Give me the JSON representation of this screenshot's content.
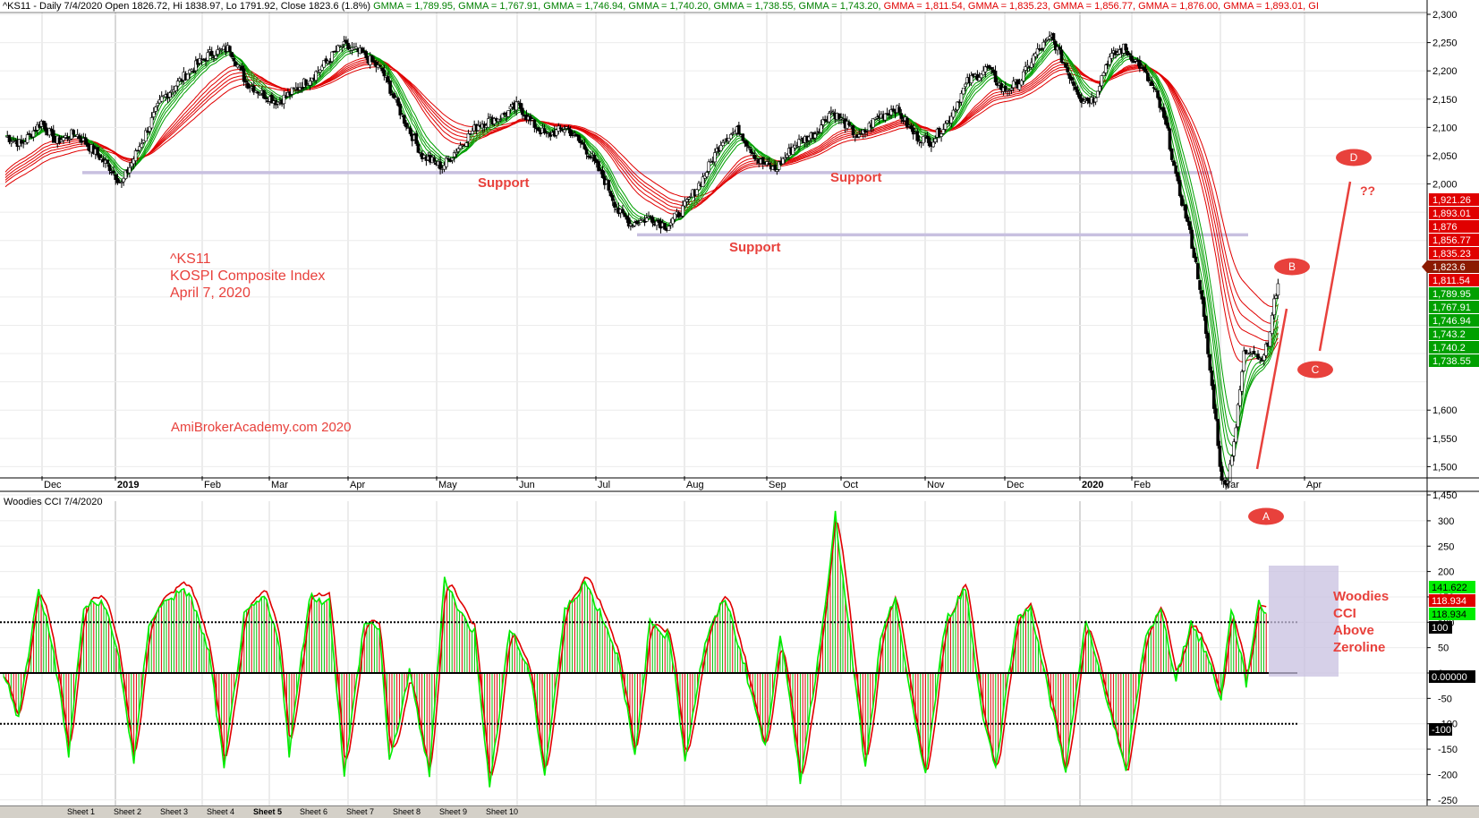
{
  "header": {
    "title_segments": [
      {
        "text": "^KS11 - Daily 7/4/2020 Open 1826.72, Hi 1838.97, Lo 1791.92, Close 1823.6 (1.8%) ",
        "color": "#000000"
      },
      {
        "text": "GMMA = 1,789.95, ",
        "color": "#008000"
      },
      {
        "text": "GMMA = 1,767.91, ",
        "color": "#008000"
      },
      {
        "text": "GMMA = 1,746.94, ",
        "color": "#008000"
      },
      {
        "text": "GMMA = 1,740.20, ",
        "color": "#008000"
      },
      {
        "text": "GMMA = 1,738.55, ",
        "color": "#008000"
      },
      {
        "text": "GMMA = 1,743.20, ",
        "color": "#008000"
      },
      {
        "text": "GMMA = 1,811.54, ",
        "color": "#e00000"
      },
      {
        "text": "GMMA = 1,835.23, ",
        "color": "#e00000"
      },
      {
        "text": "GMMA = 1,856.77, ",
        "color": "#e00000"
      },
      {
        "text": "GMMA = 1,876.00, ",
        "color": "#e00000"
      },
      {
        "text": "GMMA = 1,893.01, ",
        "color": "#e00000"
      },
      {
        "text": "GI",
        "color": "#e00000"
      }
    ]
  },
  "annotations": {
    "ticker": "^KS11",
    "name": "KOSPI Composite Index",
    "date": "April 7, 2020",
    "website": "AmiBrokerAcademy.com   2020",
    "support_1": "Support",
    "support_2": "Support",
    "support_3": "Support",
    "question": "??",
    "woodies_1": "Woodies",
    "woodies_2": "CCI",
    "woodies_3": "Above",
    "woodies_4": "Zeroline"
  },
  "markers": [
    "A",
    "B",
    "C",
    "D"
  ],
  "colors": {
    "short_gmma": "#00a000",
    "long_gmma": "#e00000",
    "cci_line": "#00ee00",
    "turbo_line": "#e00000",
    "support_line": "#c8c0e0",
    "annotation": "#e8413c",
    "highlight_box": "#c8c0e0"
  },
  "tabs": [
    "Sheet 1",
    "Sheet 2",
    "Sheet 3",
    "Sheet 4",
    "Sheet 5",
    "Sheet 6",
    "Sheet 7",
    "Sheet 8",
    "Sheet 9",
    "Sheet 10"
  ],
  "chart_data": [
    {
      "type": "candlestick",
      "title": "^KS11 - Daily 7/4/2020",
      "x_months": [
        "Dec",
        "2019",
        "Feb",
        "Mar",
        "Apr",
        "May",
        "Jun",
        "Jul",
        "Aug",
        "Sep",
        "Oct",
        "Nov",
        "Dec",
        "2020",
        "Feb",
        "Mar",
        "Apr"
      ],
      "y_ticks": [
        1450,
        1500,
        1550,
        1600,
        1650,
        1700,
        1750,
        1800,
        1850,
        1900,
        1950,
        2000,
        2050,
        2100,
        2150,
        2200,
        2250,
        2300
      ],
      "y_tick_labels": [
        "1,450",
        "1,500",
        "1,550",
        "1,600",
        "",
        "",
        "",
        "",
        "",
        "",
        "",
        "2,000",
        "2,050",
        "2,100",
        "2,150",
        "2,200",
        "2,250",
        "2,300"
      ],
      "ylim": [
        1420,
        2330
      ],
      "close_path": [
        [
          0,
          2085
        ],
        [
          8,
          2070
        ],
        [
          18,
          2110
        ],
        [
          25,
          2075
        ],
        [
          35,
          2090
        ],
        [
          45,
          2055
        ],
        [
          52,
          2030
        ],
        [
          58,
          2000
        ],
        [
          66,
          2060
        ],
        [
          78,
          2150
        ],
        [
          92,
          2200
        ],
        [
          102,
          2230
        ],
        [
          112,
          2240
        ],
        [
          120,
          2180
        ],
        [
          128,
          2160
        ],
        [
          136,
          2145
        ],
        [
          146,
          2170
        ],
        [
          156,
          2200
        ],
        [
          168,
          2245
        ],
        [
          178,
          2230
        ],
        [
          188,
          2200
        ],
        [
          198,
          2120
        ],
        [
          208,
          2050
        ],
        [
          218,
          2030
        ],
        [
          225,
          2060
        ],
        [
          236,
          2105
        ],
        [
          248,
          2120
        ],
        [
          256,
          2140
        ],
        [
          262,
          2110
        ],
        [
          270,
          2085
        ],
        [
          280,
          2100
        ],
        [
          290,
          2060
        ],
        [
          300,
          2000
        ],
        [
          306,
          1950
        ],
        [
          312,
          1930
        ],
        [
          322,
          1940
        ],
        [
          330,
          1925
        ],
        [
          338,
          1955
        ],
        [
          348,
          2010
        ],
        [
          358,
          2080
        ],
        [
          366,
          2095
        ],
        [
          376,
          2040
        ],
        [
          384,
          2025
        ],
        [
          394,
          2070
        ],
        [
          404,
          2090
        ],
        [
          412,
          2130
        ],
        [
          418,
          2110
        ],
        [
          426,
          2080
        ],
        [
          434,
          2115
        ],
        [
          444,
          2135
        ],
        [
          454,
          2085
        ],
        [
          462,
          2075
        ],
        [
          470,
          2110
        ],
        [
          480,
          2180
        ],
        [
          490,
          2205
        ],
        [
          498,
          2165
        ],
        [
          506,
          2180
        ],
        [
          514,
          2230
        ],
        [
          522,
          2260
        ],
        [
          530,
          2200
        ],
        [
          537,
          2150
        ],
        [
          543,
          2150
        ],
        [
          550,
          2220
        ],
        [
          558,
          2240
        ],
        [
          566,
          2210
        ],
        [
          574,
          2160
        ],
        [
          580,
          2090
        ],
        [
          584,
          2010
        ],
        [
          590,
          1930
        ],
        [
          596,
          1820
        ],
        [
          600,
          1700
        ],
        [
          604,
          1580
        ],
        [
          607,
          1470
        ],
        [
          610,
          1480
        ],
        [
          614,
          1570
        ],
        [
          618,
          1700
        ],
        [
          622,
          1710
        ],
        [
          626,
          1690
        ],
        [
          630,
          1715
        ],
        [
          633,
          1790
        ],
        [
          635,
          1823.6
        ]
      ],
      "close_last": 1823.6,
      "gmma_last": [
        1789.95,
        1767.91,
        1746.94,
        1740.2,
        1738.55,
        1743.2,
        1811.54,
        1835.23,
        1856.77,
        1876.0,
        1893.01
      ],
      "price_labels": [
        {
          "text": "1,921.26",
          "bg": "#e00000",
          "fg": "#ffffff"
        },
        {
          "text": "1,893.01",
          "bg": "#e00000",
          "fg": "#ffffff"
        },
        {
          "text": "1,876",
          "bg": "#e00000",
          "fg": "#ffffff"
        },
        {
          "text": "1,856.77",
          "bg": "#e00000",
          "fg": "#ffffff"
        },
        {
          "text": "1,835.23",
          "bg": "#e00000",
          "fg": "#ffffff"
        },
        {
          "text": "1,823.6",
          "bg": "#8b1a00",
          "fg": "#ffffff"
        },
        {
          "text": "1,811.54",
          "bg": "#e00000",
          "fg": "#ffffff"
        },
        {
          "text": "1,789.95",
          "bg": "#00a000",
          "fg": "#ffffff"
        },
        {
          "text": "1,767.91",
          "bg": "#00a000",
          "fg": "#ffffff"
        },
        {
          "text": "1,746.94",
          "bg": "#00a000",
          "fg": "#ffffff"
        },
        {
          "text": "1,743.2",
          "bg": "#00a000",
          "fg": "#ffffff"
        },
        {
          "text": "1,740.2",
          "bg": "#00a000",
          "fg": "#ffffff"
        },
        {
          "text": "1,738.55",
          "bg": "#00a000",
          "fg": "#ffffff"
        }
      ],
      "support_levels": [
        2020,
        1910
      ]
    },
    {
      "type": "line",
      "title": "Woodies CCI  7/4/2020",
      "y_ticks": [
        -250,
        -200,
        -150,
        -100,
        -50,
        0,
        50,
        100,
        150,
        200,
        250,
        300
      ],
      "ylim": [
        -270,
        330
      ],
      "levels": [
        -100,
        0,
        100
      ],
      "cci_path": [
        [
          0,
          0
        ],
        [
          6,
          -90
        ],
        [
          14,
          170
        ],
        [
          20,
          40
        ],
        [
          26,
          -160
        ],
        [
          32,
          130
        ],
        [
          40,
          140
        ],
        [
          46,
          30
        ],
        [
          52,
          -180
        ],
        [
          58,
          100
        ],
        [
          66,
          150
        ],
        [
          74,
          160
        ],
        [
          82,
          40
        ],
        [
          88,
          -190
        ],
        [
          96,
          110
        ],
        [
          104,
          150
        ],
        [
          110,
          60
        ],
        [
          114,
          -160
        ],
        [
          122,
          150
        ],
        [
          130,
          140
        ],
        [
          136,
          -200
        ],
        [
          144,
          100
        ],
        [
          150,
          90
        ],
        [
          154,
          -180
        ],
        [
          162,
          0
        ],
        [
          170,
          -200
        ],
        [
          176,
          190
        ],
        [
          182,
          120
        ],
        [
          188,
          80
        ],
        [
          194,
          -230
        ],
        [
          202,
          90
        ],
        [
          210,
          0
        ],
        [
          216,
          -200
        ],
        [
          224,
          120
        ],
        [
          232,
          180
        ],
        [
          240,
          100
        ],
        [
          246,
          20
        ],
        [
          252,
          -170
        ],
        [
          258,
          100
        ],
        [
          266,
          70
        ],
        [
          272,
          -170
        ],
        [
          280,
          60
        ],
        [
          288,
          150
        ],
        [
          296,
          10
        ],
        [
          304,
          -150
        ],
        [
          310,
          80
        ],
        [
          318,
          -210
        ],
        [
          326,
          60
        ],
        [
          332,
          310
        ],
        [
          338,
          60
        ],
        [
          344,
          -190
        ],
        [
          350,
          60
        ],
        [
          356,
          150
        ],
        [
          362,
          -50
        ],
        [
          368,
          -200
        ],
        [
          376,
          100
        ],
        [
          384,
          170
        ],
        [
          390,
          -60
        ],
        [
          396,
          -190
        ],
        [
          404,
          100
        ],
        [
          410,
          130
        ],
        [
          418,
          -60
        ],
        [
          424,
          -190
        ],
        [
          432,
          100
        ],
        [
          440,
          -40
        ],
        [
          448,
          -200
        ],
        [
          456,
          80
        ],
        [
          462,
          120
        ],
        [
          468,
          -10
        ],
        [
          474,
          100
        ],
        [
          480,
          40
        ],
        [
          486,
          -50
        ],
        [
          490,
          130
        ],
        [
          496,
          -20
        ],
        [
          501,
          140
        ],
        [
          504,
          120
        ]
      ],
      "cci_last": 141.622,
      "turbo_last": 118.934,
      "value_labels": [
        {
          "text": "141.622",
          "bg": "#00ee00",
          "fg": "#000000"
        },
        {
          "text": "118.934",
          "bg": "#e00000",
          "fg": "#ffffff"
        },
        {
          "text": "118.934",
          "bg": "#00ee00",
          "fg": "#000000"
        },
        {
          "text": "100",
          "bg": "#000000",
          "fg": "#ffffff"
        },
        {
          "text": "0.00000",
          "bg": "#000000",
          "fg": "#ffffff"
        },
        {
          "text": "-100",
          "bg": "#000000",
          "fg": "#ffffff"
        }
      ],
      "y_tick_labels": [
        "-250",
        "-200",
        "-150",
        "-100",
        "-50",
        "0",
        "50",
        "100",
        "150",
        "200",
        "250",
        "300"
      ]
    }
  ]
}
